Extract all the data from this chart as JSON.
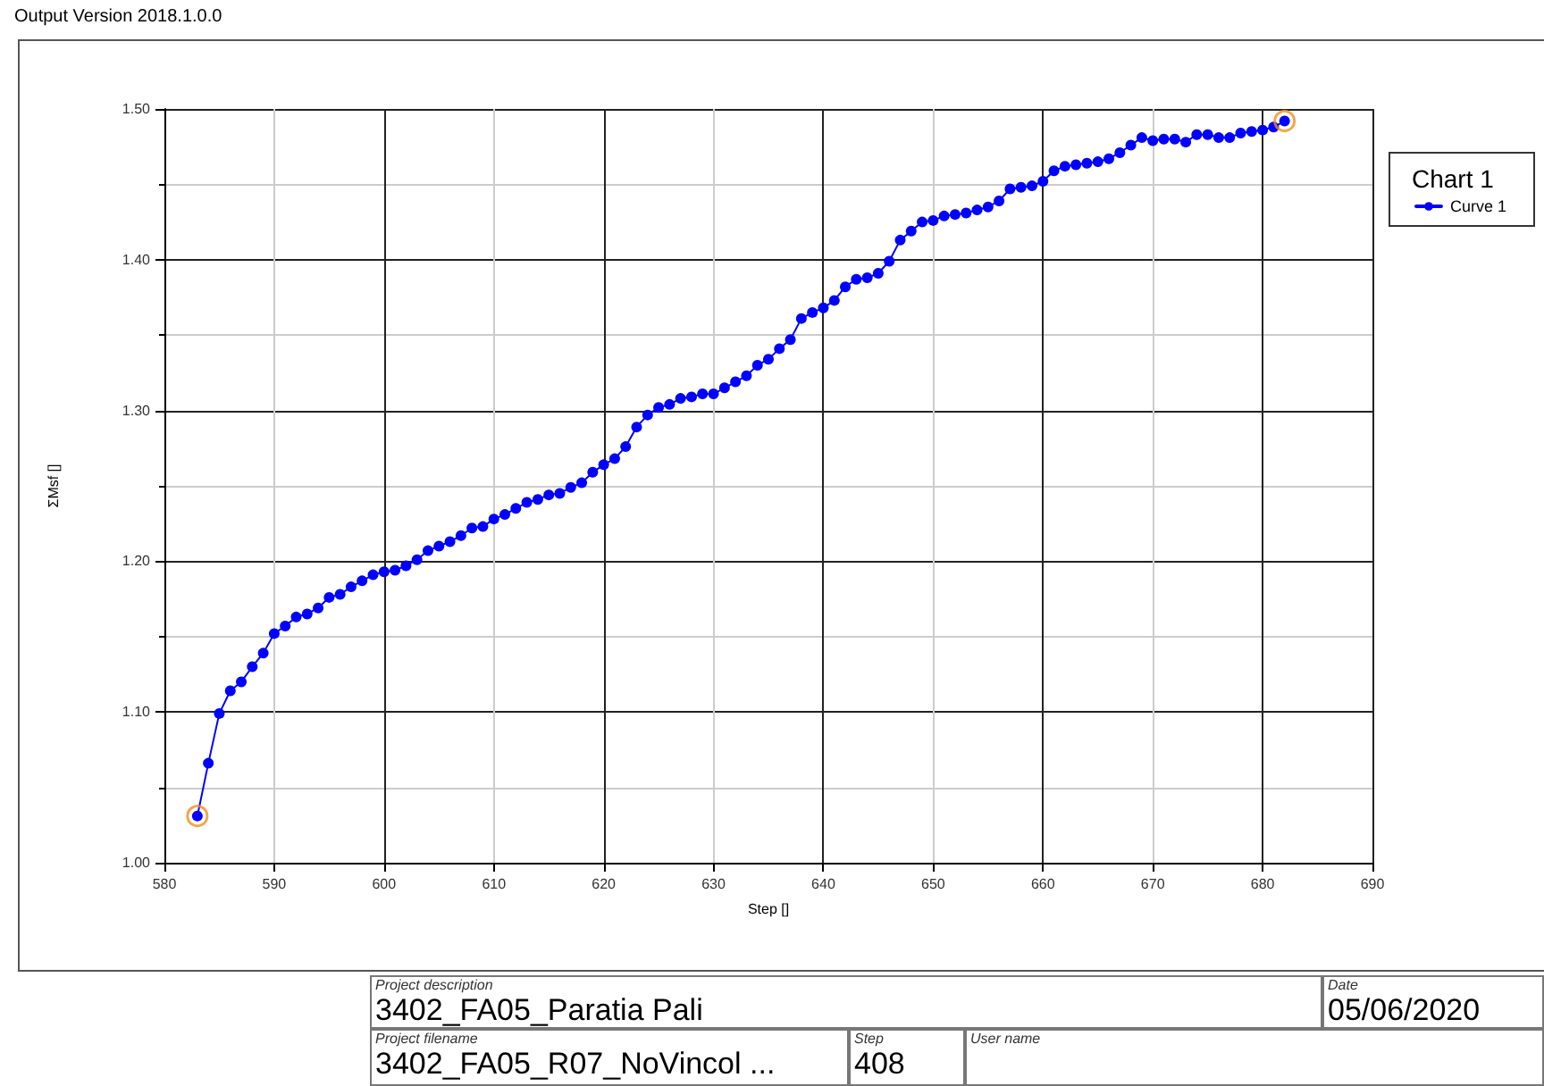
{
  "chart_data": {
    "type": "line",
    "xlabel": "Step []",
    "ylabel": "ΣMsf []",
    "legend_title": "Chart 1",
    "legend": "right",
    "grid": true,
    "marker": "circle",
    "line_style": "solid",
    "xlim": [
      580,
      690
    ],
    "xticks": [
      580,
      590,
      600,
      610,
      620,
      630,
      640,
      650,
      660,
      670,
      680,
      690
    ],
    "ylim": [
      1.0,
      1.5
    ],
    "yticks": [
      {
        "value": 1.0,
        "label": "1.00"
      },
      {
        "value": 1.1,
        "label": "1.10"
      },
      {
        "value": 1.2,
        "label": "1.20"
      },
      {
        "value": 1.3,
        "label": "1.30"
      },
      {
        "value": 1.4,
        "label": "1.40"
      },
      {
        "value": 1.5,
        "label": "1.50"
      }
    ],
    "x": [
      583,
      584,
      585,
      586,
      587,
      588,
      589,
      590,
      591,
      592,
      593,
      594,
      595,
      596,
      597,
      598,
      599,
      600,
      601,
      602,
      603,
      604,
      605,
      606,
      607,
      608,
      609,
      610,
      611,
      612,
      613,
      614,
      615,
      616,
      617,
      618,
      619,
      620,
      621,
      622,
      623,
      624,
      625,
      626,
      627,
      628,
      629,
      630,
      631,
      632,
      633,
      634,
      635,
      636,
      637,
      638,
      639,
      640,
      641,
      642,
      643,
      644,
      645,
      646,
      647,
      648,
      649,
      650,
      651,
      652,
      653,
      654,
      655,
      656,
      657,
      658,
      659,
      660,
      661,
      662,
      663,
      664,
      665,
      666,
      667,
      668,
      669,
      670,
      671,
      672,
      673,
      674,
      675,
      676,
      677,
      678,
      679,
      680,
      681,
      682
    ],
    "series": [
      {
        "name": "Curve 1",
        "color": "#0000ff",
        "values": [
          1.031,
          1.066,
          1.099,
          1.114,
          1.12,
          1.13,
          1.139,
          1.152,
          1.157,
          1.163,
          1.165,
          1.169,
          1.176,
          1.178,
          1.183,
          1.187,
          1.191,
          1.193,
          1.194,
          1.197,
          1.201,
          1.207,
          1.21,
          1.213,
          1.217,
          1.222,
          1.223,
          1.228,
          1.231,
          1.235,
          1.239,
          1.241,
          1.244,
          1.245,
          1.249,
          1.252,
          1.259,
          1.264,
          1.268,
          1.276,
          1.289,
          1.297,
          1.302,
          1.304,
          1.308,
          1.309,
          1.311,
          1.311,
          1.315,
          1.319,
          1.323,
          1.33,
          1.334,
          1.341,
          1.347,
          1.361,
          1.365,
          1.368,
          1.373,
          1.382,
          1.387,
          1.388,
          1.391,
          1.399,
          1.413,
          1.419,
          1.425,
          1.426,
          1.429,
          1.43,
          1.431,
          1.433,
          1.435,
          1.439,
          1.447,
          1.448,
          1.449,
          1.452,
          1.459,
          1.462,
          1.463,
          1.464,
          1.465,
          1.467,
          1.471,
          1.476,
          1.481,
          1.479,
          1.48,
          1.48,
          1.478,
          1.483,
          1.483,
          1.481,
          1.481,
          1.484,
          1.485,
          1.486,
          1.488,
          1.492
        ]
      },
      {
        "type": "scatter",
        "color": "#f0901e",
        "x": [
          583,
          682
        ],
        "values": [
          1.031,
          1.492
        ]
      }
    ],
    "annotations": [
      "Output Version 2018.1.0.0",
      "Project description",
      "3402_FA05_Paratia Pali",
      "Date",
      "05/06/2020",
      "Project filename",
      "3402_FA05_R07_NoVincol ...",
      "Step",
      "408",
      "User name"
    ]
  }
}
